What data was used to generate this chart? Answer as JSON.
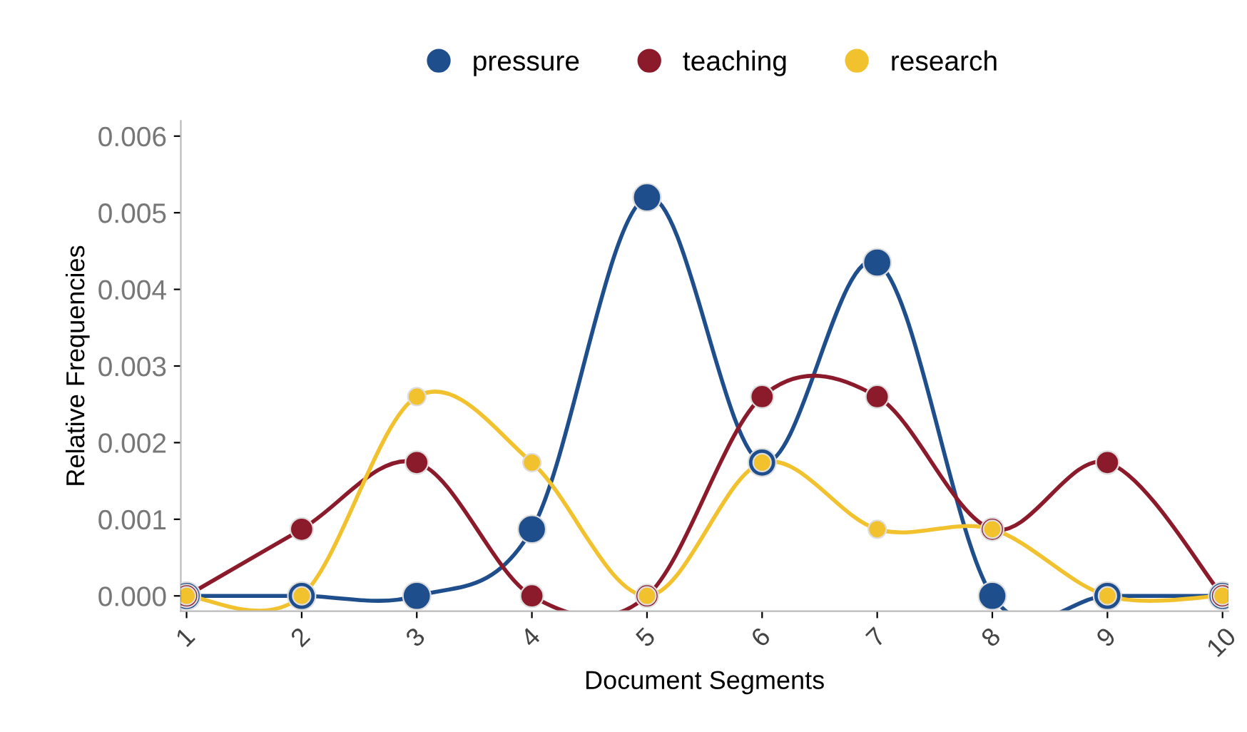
{
  "chart_data": {
    "type": "line",
    "xlabel": "Document Segments",
    "ylabel": "Relative Frequencies",
    "categories": [
      "1",
      "2",
      "3",
      "4",
      "5",
      "6",
      "7",
      "8",
      "9",
      "10"
    ],
    "series": [
      {
        "name": "pressure",
        "color": "#1f4e8c",
        "values": [
          0,
          0,
          0,
          0.00087,
          0.0052,
          0.00174,
          0.00435,
          0,
          0,
          0
        ]
      },
      {
        "name": "teaching",
        "color": "#8b1a2b",
        "values": [
          0,
          0.00087,
          0.00174,
          0,
          0,
          0.0026,
          0.0026,
          0.00087,
          0.00174,
          0
        ]
      },
      {
        "name": "research",
        "color": "#f2c12e",
        "values": [
          0,
          0,
          0.0026,
          0.00174,
          0,
          0.00174,
          0.00087,
          0.00087,
          0,
          0
        ]
      }
    ],
    "ylim": [
      -0.0002,
      0.0062
    ],
    "yticks": [
      {
        "value": 0,
        "label": "0.000"
      },
      {
        "value": 0.001,
        "label": "0.001"
      },
      {
        "value": 0.002,
        "label": "0.002"
      },
      {
        "value": 0.003,
        "label": "0.003"
      },
      {
        "value": 0.004,
        "label": "0.004"
      },
      {
        "value": 0.005,
        "label": "0.005"
      },
      {
        "value": 0.006,
        "label": "0.006"
      }
    ],
    "legend": "top",
    "grid": false,
    "marker": "circle",
    "line_style": "solid"
  }
}
